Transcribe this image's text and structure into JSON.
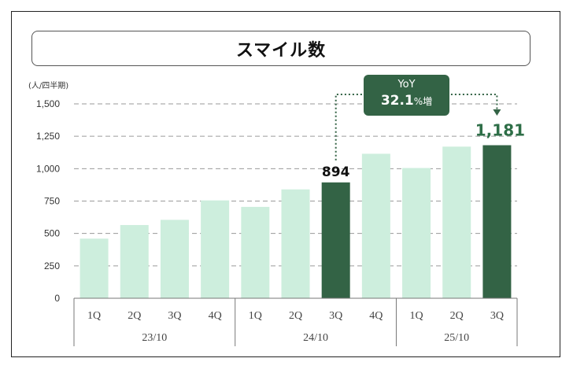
{
  "title": "スマイル数",
  "unit_label": "(人/四半期)",
  "yoy": {
    "label": "YoY",
    "value": "32.1",
    "suffix": "%増"
  },
  "colors": {
    "light": "#cdeedd",
    "dark": "#336345",
    "label_green": "#2e6e47",
    "grid": "#9a9a9a"
  },
  "chart_data": {
    "type": "bar",
    "title": "スマイル数",
    "ylabel": "(人/四半期)",
    "ylim": [
      0,
      1500
    ],
    "yticks": [
      0,
      250,
      500,
      750,
      1000,
      1250,
      1500
    ],
    "ytick_labels": [
      "0",
      "250",
      "500",
      "750",
      "1,000",
      "1,250",
      "1,500"
    ],
    "categories": [
      "1Q",
      "2Q",
      "3Q",
      "4Q",
      "1Q",
      "2Q",
      "3Q",
      "4Q",
      "1Q",
      "2Q",
      "3Q"
    ],
    "groups": [
      {
        "label": "23/10",
        "count": 4
      },
      {
        "label": "24/10",
        "count": 4
      },
      {
        "label": "25/10",
        "count": 3
      }
    ],
    "values": [
      460,
      565,
      605,
      755,
      705,
      840,
      894,
      1115,
      1005,
      1170,
      1181
    ],
    "highlight": [
      6,
      10
    ],
    "data_labels": [
      {
        "index": 6,
        "text": "894"
      },
      {
        "index": 10,
        "text": "1,181"
      }
    ],
    "grid": true,
    "legend": "none"
  }
}
